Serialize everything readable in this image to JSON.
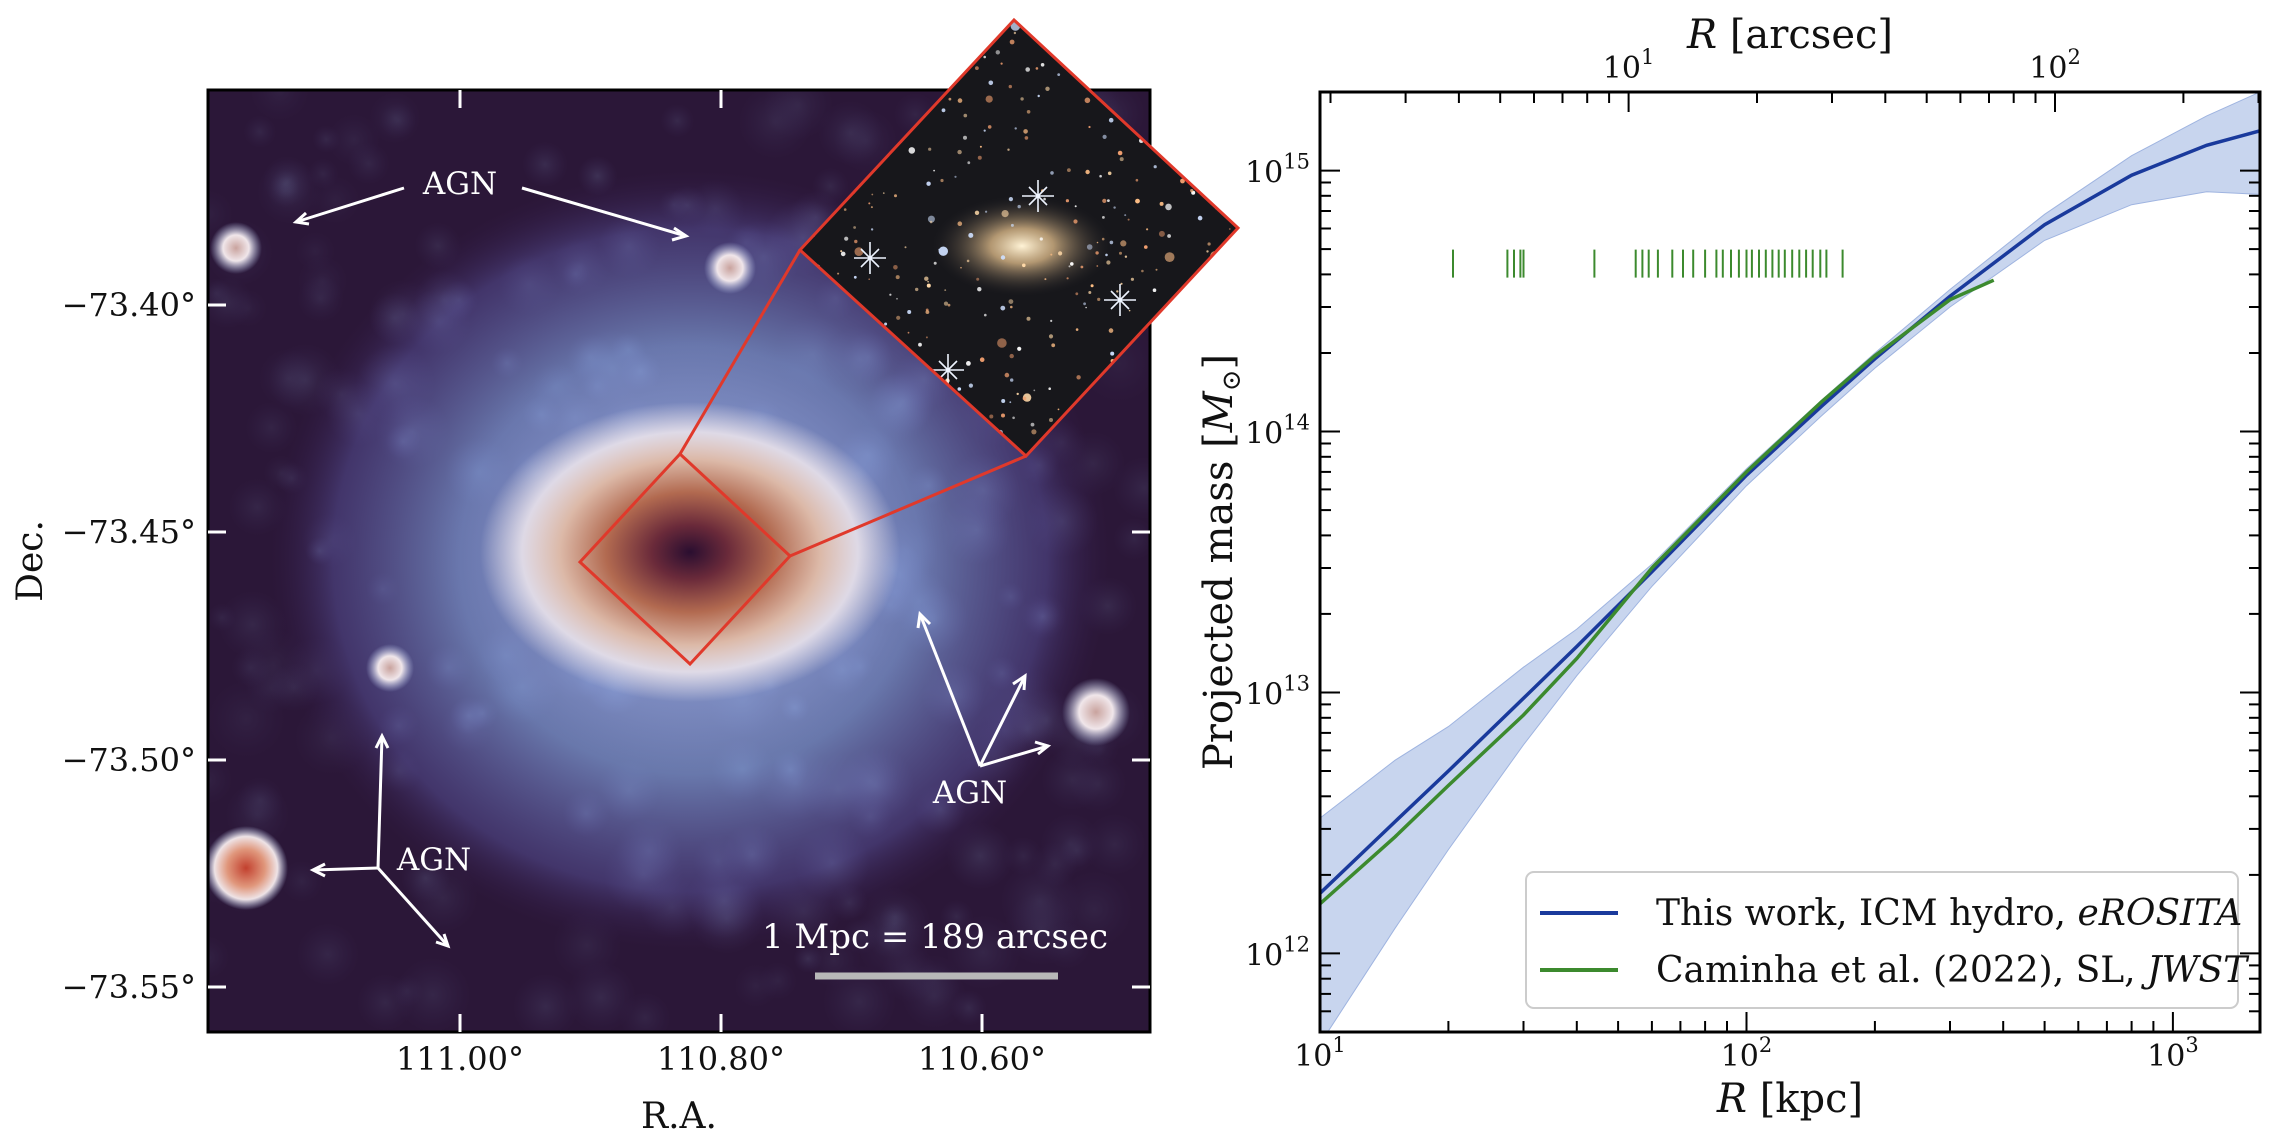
{
  "left_panel": {
    "xlabel": "R.A.",
    "ylabel": "Dec.",
    "ra_ticks": [
      "111.00°",
      "110.80°",
      "110.60°"
    ],
    "ra_tick_values": [
      111.0,
      110.8,
      110.6
    ],
    "dec_ticks": [
      "−73.40°",
      "−73.45°",
      "−73.50°",
      "−73.55°"
    ],
    "dec_tick_values": [
      -73.4,
      -73.45,
      -73.5,
      -73.55
    ],
    "agn_labels": [
      "AGN",
      "AGN",
      "AGN"
    ],
    "scalebar_text": "1 Mpc = 189 arcsec",
    "colors": {
      "outline": "#e0392b",
      "arrows": "#ffffff",
      "scalebar": "#b8b8b8"
    }
  },
  "chart_data": {
    "type": "line",
    "xlabel_unit": "[kpc]",
    "xlabel_symbol": "R",
    "top_xlabel_unit": "[arcsec]",
    "top_xlabel_symbol": "R",
    "ylabel": "Projected mass",
    "ylabel_unit": "M",
    "x_scale": "log",
    "y_scale": "log",
    "xlim": [
      10,
      1600
    ],
    "ylim": [
      500000000000.0,
      2000000000000000.0
    ],
    "x_ticks": [
      10,
      100,
      1000
    ],
    "x_tick_labels": [
      "10",
      "10",
      "10"
    ],
    "x_tick_exps": [
      "1",
      "2",
      "3"
    ],
    "top_x_ticks_arcsec": [
      10,
      100
    ],
    "top_x_tick_labels": [
      "10",
      "10"
    ],
    "top_x_tick_exps": [
      "1",
      "2"
    ],
    "kpc_per_arcsec": 5.291,
    "y_ticks": [
      1000000000000.0,
      10000000000000.0,
      100000000000000.0,
      1000000000000000.0
    ],
    "y_tick_labels": [
      "10",
      "10",
      "10",
      "10"
    ],
    "y_tick_exps": [
      "12",
      "13",
      "14",
      "15"
    ],
    "legend_position": "lower right",
    "series": [
      {
        "name": "This work, ICM hydro, ",
        "name_italic": "eROSITA",
        "color": "#1a3a9c",
        "band_color": "#b5c7e8",
        "x": [
          10,
          15,
          20,
          30,
          40,
          60,
          100,
          150,
          200,
          300,
          500,
          800,
          1200,
          1600
        ],
        "y": [
          1700000000000.0,
          3200000000000.0,
          5000000000000.0,
          9500000000000.0,
          15000000000000.0,
          29000000000000.0,
          68000000000000.0,
          125000000000000.0,
          190000000000000.0,
          330000000000000.0,
          620000000000000.0,
          960000000000000.0,
          1250000000000000.0,
          1420000000000000.0
        ],
        "y_low": [
          450000000000.0,
          1250000000000.0,
          2500000000000.0,
          6300000000000.0,
          11600000000000.0,
          25500000000000.0,
          62000000000000.0,
          115000000000000.0,
          175000000000000.0,
          300000000000000.0,
          540000000000000.0,
          740000000000000.0,
          830000000000000.0,
          810000000000000.0
        ],
        "y_high": [
          3300000000000.0,
          5500000000000.0,
          7400000000000.0,
          12500000000000.0,
          17500000000000.0,
          31000000000000.0,
          72000000000000.0,
          132000000000000.0,
          200000000000000.0,
          350000000000000.0,
          680000000000000.0,
          1140000000000000.0,
          1620000000000000.0,
          2000000000000000.0
        ]
      },
      {
        "name": "Caminha et al. (2022), SL, ",
        "name_italic": "JWST",
        "color": "#3c8a2e",
        "x": [
          10,
          15,
          20,
          30,
          40,
          60,
          100,
          150,
          200,
          300,
          380
        ],
        "y": [
          1550000000000.0,
          2800000000000.0,
          4400000000000.0,
          8200000000000.0,
          13500000000000.0,
          30000000000000.0,
          70000000000000.0,
          130000000000000.0,
          195000000000000.0,
          320000000000000.0,
          380000000000000.0
        ]
      }
    ],
    "rug": {
      "color": "#3c8a2e",
      "y": 440000000000000.0,
      "x": [
        20.5,
        27.5,
        28.5,
        29.5,
        30,
        44,
        55,
        57,
        59,
        62,
        67,
        71,
        75,
        80,
        85,
        88,
        92,
        96,
        100,
        103,
        107,
        111,
        115,
        119,
        123,
        128,
        133,
        138,
        143,
        149,
        154,
        168
      ]
    }
  }
}
